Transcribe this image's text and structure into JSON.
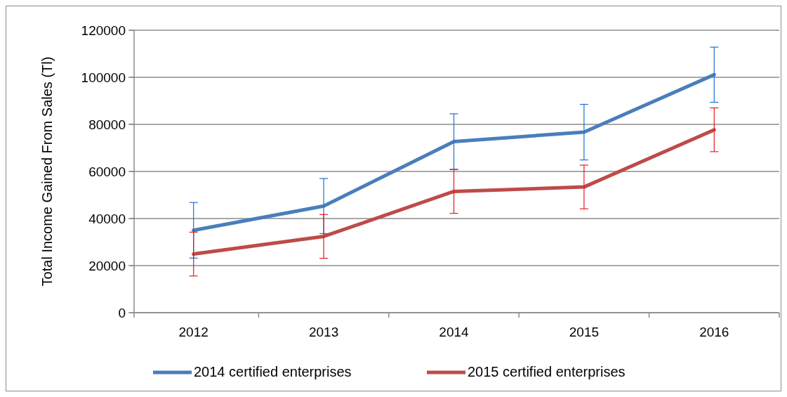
{
  "chart_data": {
    "type": "line",
    "ylabel": "Total Income Gained From Sales (Tl)",
    "categories": [
      "2012",
      "2013",
      "2014",
      "2015",
      "2016"
    ],
    "series": [
      {
        "name": "2014 certified enterprises",
        "color": "#4a7ebb",
        "values": [
          35000,
          45300,
          72700,
          76700,
          101100
        ],
        "errors": [
          11800,
          11700,
          11800,
          11800,
          11700
        ]
      },
      {
        "name": "2015 certified enterprises",
        "color": "#be4b48",
        "values": [
          24900,
          32400,
          51500,
          53400,
          77700
        ],
        "errors": [
          9300,
          9300,
          9300,
          9300,
          9300
        ]
      }
    ],
    "ylim": [
      0,
      120000
    ],
    "yticks": [
      0,
      20000,
      40000,
      60000,
      80000,
      100000,
      120000
    ],
    "grid": "y",
    "legend": "bottom",
    "marker": "none",
    "line_style": "solid"
  }
}
